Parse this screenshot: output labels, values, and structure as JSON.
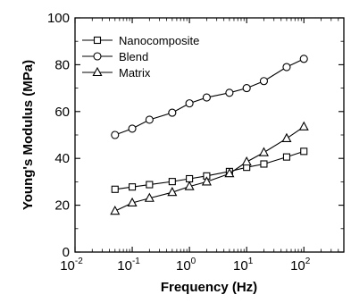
{
  "chart_data": {
    "type": "line",
    "title": "",
    "xlabel": "Frequency (Hz)",
    "ylabel": "Young's Modulus (MPa)",
    "xscale": "log",
    "xlim": [
      0.01,
      500
    ],
    "ylim": [
      0,
      100
    ],
    "grid": false,
    "legend": "top-left",
    "xticks": [
      {
        "value": 0.01,
        "base": "10",
        "exp": "-2"
      },
      {
        "value": 0.1,
        "base": "10",
        "exp": "-1"
      },
      {
        "value": 1,
        "base": "10",
        "exp": "0"
      },
      {
        "value": 10,
        "base": "10",
        "exp": "1"
      },
      {
        "value": 100,
        "base": "10",
        "exp": "2"
      }
    ],
    "yticks": [
      "0",
      "20",
      "40",
      "60",
      "80",
      "100"
    ],
    "x": [
      0.05,
      0.1,
      0.2,
      0.5,
      1,
      2,
      5,
      10,
      20,
      50,
      100
    ],
    "series": [
      {
        "name": "Nanocomposite",
        "marker": "square",
        "values": [
          26.8,
          27.8,
          28.8,
          30.1,
          31.3,
          32.5,
          34.4,
          36.2,
          37.6,
          40.6,
          43.0
        ]
      },
      {
        "name": "Blend",
        "marker": "circle",
        "values": [
          50.0,
          52.7,
          56.5,
          59.5,
          63.5,
          66.0,
          68.0,
          70.0,
          73.0,
          79.0,
          82.5
        ]
      },
      {
        "name": "Matrix",
        "marker": "triangle",
        "values": [
          17.5,
          21.0,
          23.0,
          25.5,
          28.0,
          30.0,
          33.5,
          38.5,
          42.5,
          48.5,
          53.5
        ]
      }
    ]
  }
}
